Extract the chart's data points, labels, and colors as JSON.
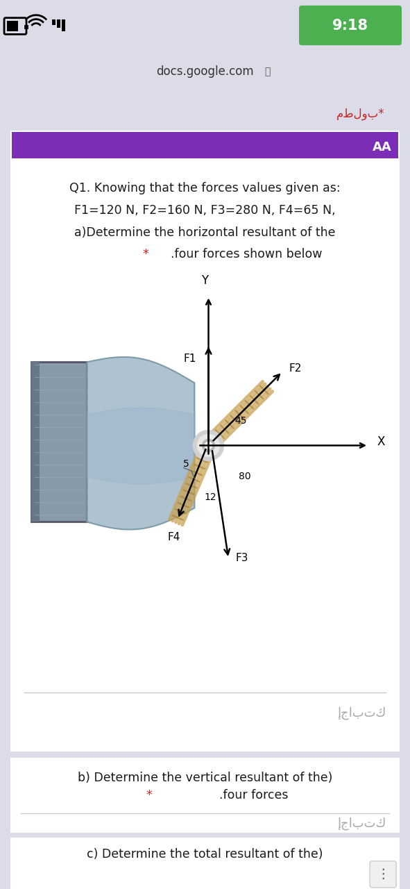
{
  "bg_color": "#dcdce8",
  "status_bar_bg": "#ffffff",
  "time_text": "9:18",
  "time_bg": "#4caf50",
  "url_text": "docs.google.com",
  "arabic_required": "مطلوب*",
  "purple_header_color": "#7b2db8",
  "aa_text": "AA",
  "card1_text_line1": "Q1. Knowing that the forces values given as:",
  "card1_text_line2": "F1=120 N, F2=160 N, F3=280 N, F4=65 N,",
  "card1_text_line3": "a)Determine the horizontal resultant of the",
  "card1_text_line4": ".four forces shown below",
  "card1_star": "*",
  "card2_text_line1": "b) Determine the vertical resultant of the)",
  "card2_text_line2": ".four forces",
  "card2_star": "*",
  "card3_text": "c) Determine the total resultant of the)",
  "ijabatk_text": "إجابتك",
  "f1_label": "F1",
  "f2_label": "F2",
  "f3_label": "F3",
  "f4_label": "F4",
  "y_label": "Y",
  "x_label": "X",
  "angle_45_label": "45",
  "angle_80_label": "80",
  "angle_12_label": "12",
  "angle_5_label": "5"
}
